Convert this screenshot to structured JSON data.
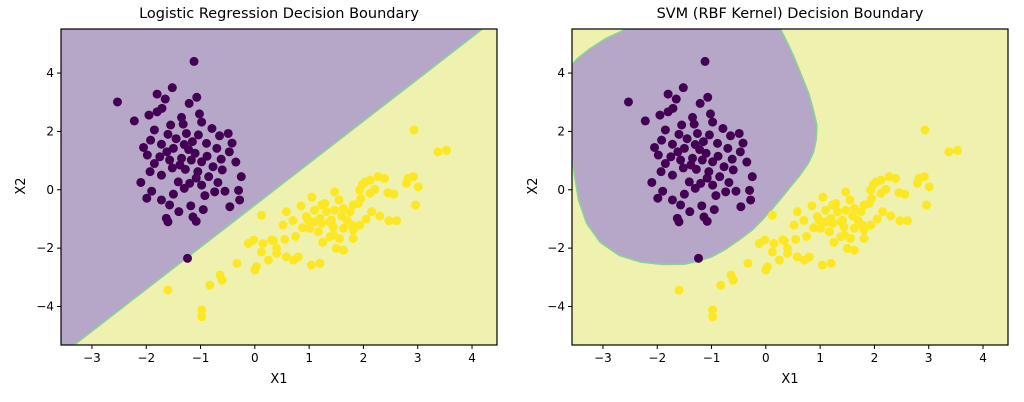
{
  "chart_data": {
    "type": "scatter",
    "figure_background": "#ffffff",
    "shared": {
      "xlabel": "X1",
      "ylabel": "X2",
      "xlim": [
        -3.57,
        4.46
      ],
      "ylim": [
        -5.32,
        5.51
      ],
      "xticks": [
        -3,
        -2,
        -1,
        0,
        1,
        2,
        3,
        4
      ],
      "yticks": [
        -4,
        -2,
        0,
        2,
        4
      ],
      "grid": false,
      "legend": "none",
      "colors": {
        "class0_point": "#440154",
        "class1_point": "#fde725",
        "region_class0": "#b6a7c8",
        "region_class1": "#eef2ae",
        "boundary_edge": "#8ecf9b",
        "axis": "#000000"
      },
      "series": [
        {
          "name": "class-0-dark-purple",
          "color": "#440154",
          "points": [
            [
              -1.12,
              4.4
            ],
            [
              -2.53,
              3.01
            ],
            [
              -1.8,
              3.28
            ],
            [
              -1.65,
              3.11
            ],
            [
              -1.52,
              3.5
            ],
            [
              -1.07,
              3.17
            ],
            [
              -1.21,
              2.96
            ],
            [
              -1.95,
              2.56
            ],
            [
              -1.8,
              2.67
            ],
            [
              -1.71,
              2.79
            ],
            [
              -2.22,
              2.36
            ],
            [
              -1.55,
              2.22
            ],
            [
              -1.32,
              2.25
            ],
            [
              -0.98,
              2.32
            ],
            [
              -0.79,
              2.1
            ],
            [
              -1.02,
              2.6
            ],
            [
              -1.35,
              2.48
            ],
            [
              -1.85,
              2.05
            ],
            [
              -1.6,
              1.9
            ],
            [
              -1.92,
              1.7
            ],
            [
              -1.72,
              1.56
            ],
            [
              -1.5,
              1.42
            ],
            [
              -1.26,
              1.93
            ],
            [
              -1.15,
              1.65
            ],
            [
              -1.04,
              1.88
            ],
            [
              -0.89,
              1.59
            ],
            [
              -0.49,
              1.93
            ],
            [
              -0.47,
              1.3
            ],
            [
              -0.65,
              1.85
            ],
            [
              -0.42,
              1.6
            ],
            [
              -2.05,
              1.45
            ],
            [
              -1.98,
              1.19
            ],
            [
              -1.75,
              1.13
            ],
            [
              -1.62,
              1.3
            ],
            [
              -1.57,
              1.02
            ],
            [
              -1.45,
              1.75
            ],
            [
              -1.35,
              1.08
            ],
            [
              -1.3,
              1.55
            ],
            [
              -1.22,
              1.38
            ],
            [
              -1.17,
              1.02
            ],
            [
              -1.1,
              1.25
            ],
            [
              -0.98,
              0.96
            ],
            [
              -0.88,
              1.15
            ],
            [
              -0.77,
              0.79
            ],
            [
              -0.7,
              1.42
            ],
            [
              -0.62,
              1.05
            ],
            [
              -0.35,
              0.95
            ],
            [
              -0.25,
              0.45
            ],
            [
              -1.93,
              0.62
            ],
            [
              -1.85,
              0.9
            ],
            [
              -1.72,
              0.5
            ],
            [
              -1.52,
              0.75
            ],
            [
              -1.41,
              0.27
            ],
            [
              -1.38,
              0.85
            ],
            [
              -1.28,
              0.7
            ],
            [
              -1.2,
              0.22
            ],
            [
              -1.08,
              0.4
            ],
            [
              -1.05,
              0.62
            ],
            [
              -0.98,
              0.16
            ],
            [
              -0.85,
              0.45
            ],
            [
              -0.68,
              0.25
            ],
            [
              -0.6,
              0.68
            ],
            [
              -0.74,
              -0.07
            ],
            [
              -0.55,
              -0.05
            ],
            [
              -0.46,
              -0.58
            ],
            [
              -0.3,
              -0.02
            ],
            [
              -0.28,
              -0.35
            ],
            [
              -2.1,
              0.25
            ],
            [
              -1.99,
              -0.29
            ],
            [
              -1.9,
              -0.05
            ],
            [
              -1.72,
              -0.35
            ],
            [
              -1.57,
              -0.52
            ],
            [
              -1.5,
              -0.15
            ],
            [
              -1.4,
              -0.75
            ],
            [
              -1.3,
              0.05
            ],
            [
              -1.18,
              -0.55
            ],
            [
              -1.14,
              -0.93
            ],
            [
              -0.95,
              -0.68
            ],
            [
              -0.92,
              -0.2
            ],
            [
              -1.63,
              -0.98
            ],
            [
              -1.6,
              -1.1
            ],
            [
              -1.08,
              -1.08
            ],
            [
              -1.24,
              -2.35
            ]
          ]
        },
        {
          "name": "class-1-yellow",
          "color": "#fde725",
          "points": [
            [
              2.93,
              2.05
            ],
            [
              3.37,
              1.3
            ],
            [
              3.53,
              1.35
            ],
            [
              2.92,
              0.45
            ],
            [
              2.82,
              0.39
            ],
            [
              2.79,
              0.22
            ],
            [
              3.01,
              0.1
            ],
            [
              2.96,
              -0.52
            ],
            [
              2.27,
              0.45
            ],
            [
              2.39,
              0.39
            ],
            [
              2.12,
              0.33
            ],
            [
              2.03,
              0.27
            ],
            [
              1.98,
              0.18
            ],
            [
              2.21,
              0.02
            ],
            [
              1.93,
              -0.01
            ],
            [
              2.45,
              -0.1
            ],
            [
              2.56,
              -0.15
            ],
            [
              2.12,
              -0.12
            ],
            [
              1.9,
              -0.47
            ],
            [
              1.81,
              -0.52
            ],
            [
              1.63,
              -0.64
            ],
            [
              1.75,
              -0.75
            ],
            [
              2.15,
              -0.75
            ],
            [
              1.47,
              -0.07
            ],
            [
              1.55,
              -0.35
            ],
            [
              1.29,
              -0.47
            ],
            [
              1.23,
              -0.52
            ],
            [
              1.32,
              -0.75
            ],
            [
              1.47,
              -0.7
            ],
            [
              1.1,
              -0.7
            ],
            [
              0.58,
              -0.75
            ],
            [
              0.85,
              -0.55
            ],
            [
              1.05,
              -0.25
            ],
            [
              0.95,
              -0.92
            ],
            [
              0.12,
              -0.87
            ],
            [
              0.52,
              -1.21
            ],
            [
              0.7,
              -1.05
            ],
            [
              0.98,
              -1.04
            ],
            [
              1.1,
              -1.1
            ],
            [
              1.2,
              -0.98
            ],
            [
              1.23,
              -1.15
            ],
            [
              1.38,
              -1.1
            ],
            [
              1.41,
              -1.04
            ],
            [
              1.44,
              -1.27
            ],
            [
              1.63,
              -1.32
            ],
            [
              1.81,
              -1.38
            ],
            [
              1.93,
              -1.21
            ],
            [
              1.78,
              -1.21
            ],
            [
              2.47,
              -1.06
            ],
            [
              2.61,
              -1.06
            ],
            [
              2.05,
              -1.0
            ],
            [
              1.6,
              -0.9
            ],
            [
              1.01,
              -1.32
            ],
            [
              1.17,
              -1.44
            ],
            [
              0.88,
              -1.3
            ],
            [
              1.38,
              -1.61
            ],
            [
              1.56,
              -1.67
            ],
            [
              1.81,
              -1.67
            ],
            [
              1.45,
              -1.55
            ],
            [
              0.31,
              -1.72
            ],
            [
              -0.02,
              -1.72
            ],
            [
              -0.12,
              -1.84
            ],
            [
              0.15,
              -1.84
            ],
            [
              0.34,
              -1.75
            ],
            [
              0.55,
              -1.7
            ],
            [
              0.75,
              -1.6
            ],
            [
              0.4,
              -2.01
            ],
            [
              0.12,
              -2.13
            ],
            [
              0.4,
              -2.18
            ],
            [
              0.58,
              -2.3
            ],
            [
              0.71,
              -2.41
            ],
            [
              0.8,
              -2.3
            ],
            [
              1.5,
              -2.01
            ],
            [
              1.63,
              -2.07
            ],
            [
              1.25,
              -1.8
            ],
            [
              1.04,
              -2.58
            ],
            [
              1.2,
              -2.52
            ],
            [
              0.25,
              -2.41
            ],
            [
              0.03,
              -2.64
            ],
            [
              0.0,
              -2.75
            ],
            [
              -0.33,
              -2.52
            ],
            [
              -0.64,
              -2.92
            ],
            [
              -0.6,
              -3.1
            ],
            [
              -0.83,
              -3.27
            ],
            [
              -1.6,
              -3.44
            ],
            [
              -0.98,
              -4.12
            ],
            [
              -0.98,
              -4.35
            ],
            [
              2.3,
              -0.9
            ],
            [
              1.7,
              -1.05
            ],
            [
              1.95,
              -0.3
            ]
          ]
        }
      ]
    },
    "panels": [
      {
        "title": "Logistic Regression Decision Boundary",
        "boundary_type": "linear",
        "boundary_line_endpoints": [
          [
            -3.33,
            -5.32
          ],
          [
            4.19,
            5.51
          ]
        ]
      },
      {
        "title": "SVM (RBF Kernel) Decision Boundary",
        "boundary_type": "rbf-blob",
        "blob_contour": [
          [
            -2.57,
            5.51
          ],
          [
            -2.95,
            5.18
          ],
          [
            -3.25,
            4.82
          ],
          [
            -3.48,
            4.48
          ],
          [
            -3.57,
            4.28
          ],
          [
            -3.57,
            1.1
          ],
          [
            -3.52,
            0.45
          ],
          [
            -3.45,
            -0.35
          ],
          [
            -3.3,
            -1.15
          ],
          [
            -3.05,
            -1.8
          ],
          [
            -2.7,
            -2.25
          ],
          [
            -2.3,
            -2.48
          ],
          [
            -1.9,
            -2.56
          ],
          [
            -1.5,
            -2.55
          ],
          [
            -1.25,
            -2.45
          ],
          [
            -1.0,
            -2.3
          ],
          [
            -0.75,
            -2.05
          ],
          [
            -0.48,
            -1.7
          ],
          [
            -0.25,
            -1.38
          ],
          [
            -0.05,
            -1.0
          ],
          [
            0.12,
            -0.65
          ],
          [
            0.3,
            -0.25
          ],
          [
            0.46,
            0.12
          ],
          [
            0.62,
            0.48
          ],
          [
            0.78,
            0.9
          ],
          [
            0.88,
            1.3
          ],
          [
            0.93,
            1.75
          ],
          [
            0.94,
            2.2
          ],
          [
            0.88,
            2.7
          ],
          [
            0.79,
            3.3
          ],
          [
            0.66,
            3.9
          ],
          [
            0.53,
            4.5
          ],
          [
            0.42,
            4.95
          ],
          [
            0.27,
            5.51
          ]
        ]
      }
    ]
  }
}
